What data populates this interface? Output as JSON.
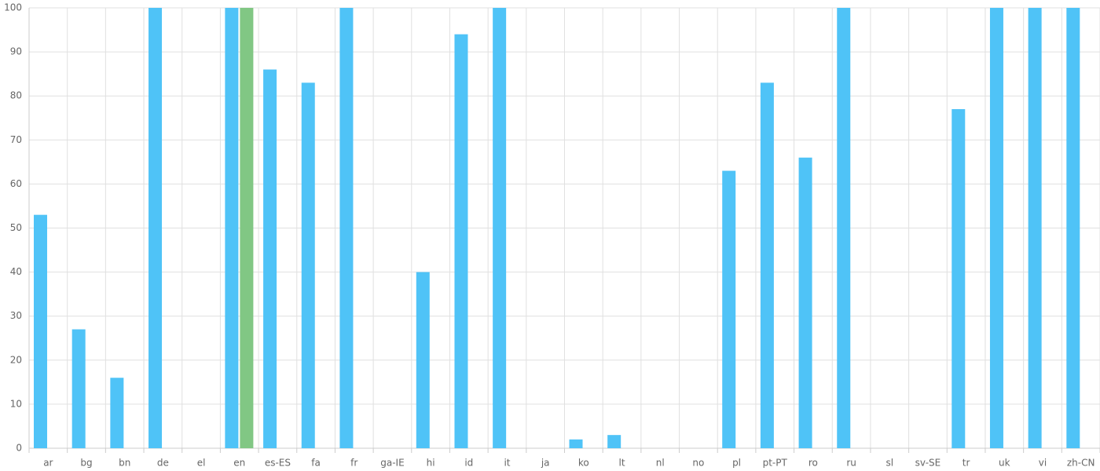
{
  "chart_data": {
    "type": "bar",
    "categories": [
      "ar",
      "bg",
      "bn",
      "de",
      "el",
      "en",
      "es-ES",
      "fa",
      "fr",
      "ga-IE",
      "hi",
      "id",
      "it",
      "ja",
      "ko",
      "lt",
      "nl",
      "no",
      "pl",
      "pt-PT",
      "ro",
      "ru",
      "sl",
      "sv-SE",
      "tr",
      "uk",
      "vi",
      "zh-CN"
    ],
    "series": [
      {
        "color": "#4fc3f7",
        "values": [
          53,
          27,
          16,
          100,
          0,
          100,
          86,
          83,
          100,
          0,
          40,
          94,
          100,
          0,
          2,
          3,
          0,
          0,
          63,
          83,
          66,
          100,
          0,
          0,
          77,
          100,
          100,
          100
        ]
      },
      {
        "color": "#81c784",
        "values": [
          null,
          null,
          null,
          null,
          null,
          100,
          null,
          null,
          null,
          null,
          null,
          null,
          null,
          null,
          null,
          null,
          null,
          null,
          null,
          null,
          null,
          null,
          null,
          null,
          null,
          null,
          null,
          null
        ]
      }
    ],
    "ylim": [
      0,
      100
    ],
    "yticks": [
      0,
      10,
      20,
      30,
      40,
      50,
      60,
      70,
      80,
      90,
      100
    ],
    "grid": true
  }
}
